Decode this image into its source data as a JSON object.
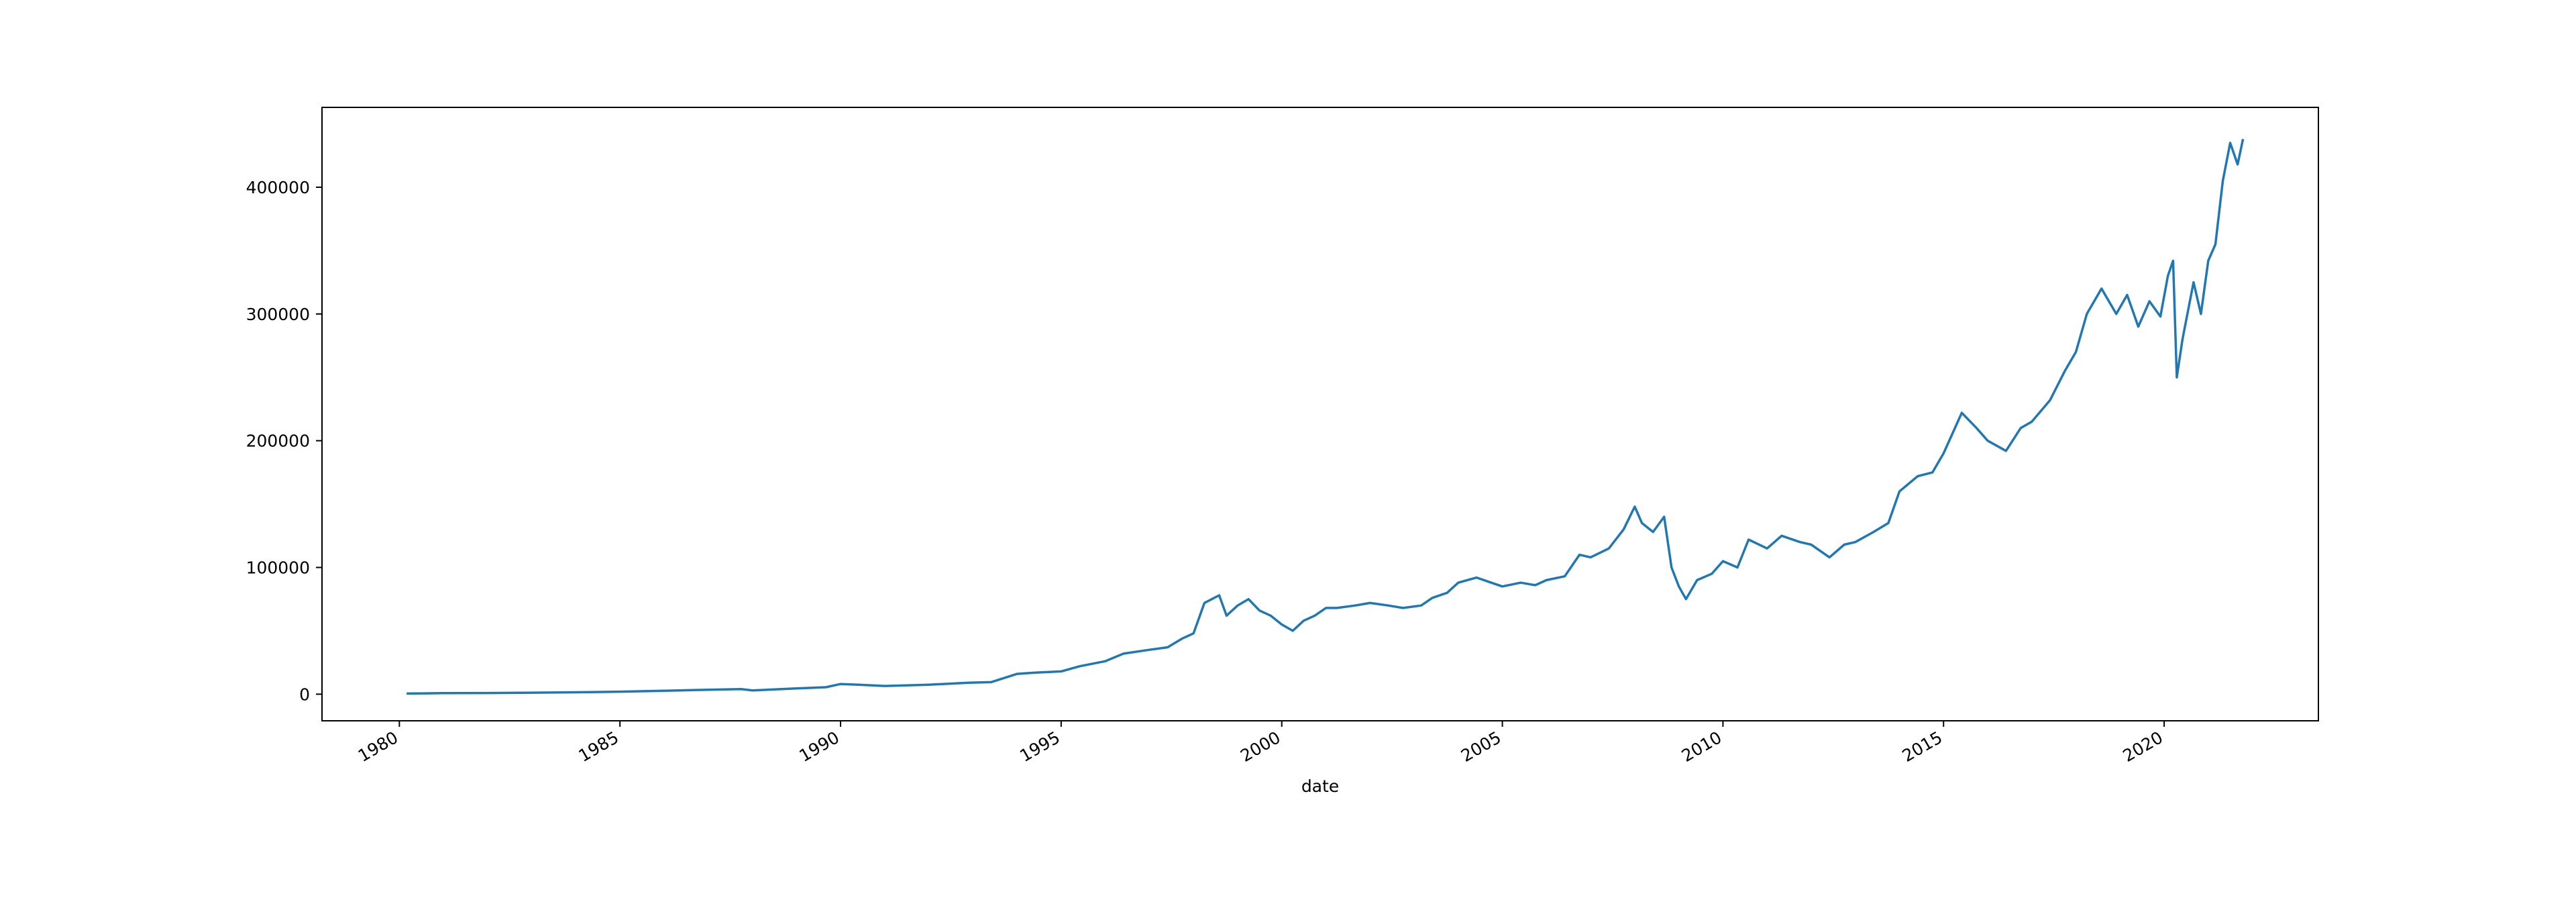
{
  "chart_data": {
    "type": "line",
    "title": "",
    "xlabel": "date",
    "ylabel": "",
    "grid": false,
    "legend": "none",
    "x_ticks": [
      "1980",
      "1985",
      "1990",
      "1995",
      "2000",
      "2005",
      "2010",
      "2015",
      "2020"
    ],
    "y_ticks": [
      "0",
      "100000",
      "200000",
      "300000",
      "400000"
    ],
    "xlim": [
      "1978-04-01",
      "2023-07-01"
    ],
    "ylim": [
      -21000,
      463000
    ],
    "series": [
      {
        "color": "#1f77b4",
        "x": [
          "1980-03-01",
          "1981-01-01",
          "1982-01-01",
          "1983-01-01",
          "1984-01-01",
          "1985-01-01",
          "1986-01-01",
          "1987-01-01",
          "1987-10-01",
          "1988-01-01",
          "1989-01-01",
          "1989-09-01",
          "1990-01-01",
          "1990-06-01",
          "1991-01-01",
          "1992-01-01",
          "1992-12-01",
          "1993-06-01",
          "1994-01-01",
          "1994-06-01",
          "1995-01-01",
          "1995-06-01",
          "1996-01-01",
          "1996-06-01",
          "1997-01-01",
          "1997-06-01",
          "1997-10-01",
          "1998-01-01",
          "1998-04-01",
          "1998-08-01",
          "1998-10-01",
          "1999-01-01",
          "1999-04-01",
          "1999-07-01",
          "1999-10-01",
          "2000-01-01",
          "2000-04-01",
          "2000-07-01",
          "2000-10-01",
          "2001-01-01",
          "2001-04-01",
          "2001-09-01",
          "2002-01-01",
          "2002-06-01",
          "2002-10-01",
          "2003-03-01",
          "2003-06-01",
          "2003-10-01",
          "2004-01-01",
          "2004-06-01",
          "2004-10-01",
          "2005-01-01",
          "2005-06-01",
          "2005-10-01",
          "2006-01-01",
          "2006-06-01",
          "2006-10-01",
          "2007-01-01",
          "2007-06-01",
          "2007-10-01",
          "2008-01-01",
          "2008-03-01",
          "2008-06-01",
          "2008-09-01",
          "2008-11-01",
          "2009-01-01",
          "2009-03-01",
          "2009-06-01",
          "2009-10-01",
          "2010-01-01",
          "2010-05-01",
          "2010-08-01",
          "2011-01-01",
          "2011-05-01",
          "2011-10-01",
          "2012-01-01",
          "2012-06-01",
          "2012-10-01",
          "2013-01-01",
          "2013-06-01",
          "2013-10-01",
          "2014-01-01",
          "2014-06-01",
          "2014-10-01",
          "2015-01-01",
          "2015-06-01",
          "2015-10-01",
          "2016-01-01",
          "2016-06-01",
          "2016-10-01",
          "2017-01-01",
          "2017-06-01",
          "2017-10-01",
          "2018-01-01",
          "2018-04-01",
          "2018-08-01",
          "2018-12-01",
          "2019-03-01",
          "2019-06-01",
          "2019-09-01",
          "2019-12-01",
          "2020-02-01",
          "2020-03-15",
          "2020-04-15",
          "2020-06-01",
          "2020-09-01",
          "2020-11-01",
          "2021-01-01",
          "2021-03-01",
          "2021-05-01",
          "2021-07-01",
          "2021-09-01",
          "2021-10-15"
        ],
        "values": [
          500,
          800,
          900,
          1200,
          1500,
          2000,
          2700,
          3500,
          4000,
          3000,
          4500,
          5500,
          8000,
          7500,
          6500,
          7500,
          9000,
          9500,
          16000,
          17000,
          18000,
          22000,
          26000,
          32000,
          35000,
          37000,
          44000,
          48000,
          72000,
          78000,
          62000,
          70000,
          75000,
          66000,
          62000,
          55000,
          50000,
          58000,
          62000,
          68000,
          68000,
          70000,
          72000,
          70000,
          68000,
          70000,
          76000,
          80000,
          88000,
          92000,
          88000,
          85000,
          88000,
          86000,
          90000,
          93000,
          110000,
          108000,
          115000,
          130000,
          148000,
          135000,
          128000,
          140000,
          100000,
          85000,
          75000,
          90000,
          95000,
          105000,
          100000,
          122000,
          115000,
          125000,
          120000,
          118000,
          108000,
          118000,
          120000,
          128000,
          135000,
          160000,
          172000,
          175000,
          190000,
          222000,
          210000,
          200000,
          192000,
          210000,
          215000,
          232000,
          255000,
          270000,
          300000,
          320000,
          300000,
          315000,
          290000,
          310000,
          298000,
          330000,
          342000,
          250000,
          280000,
          325000,
          300000,
          342000,
          355000,
          405000,
          435000,
          418000,
          438000
        ]
      }
    ]
  }
}
